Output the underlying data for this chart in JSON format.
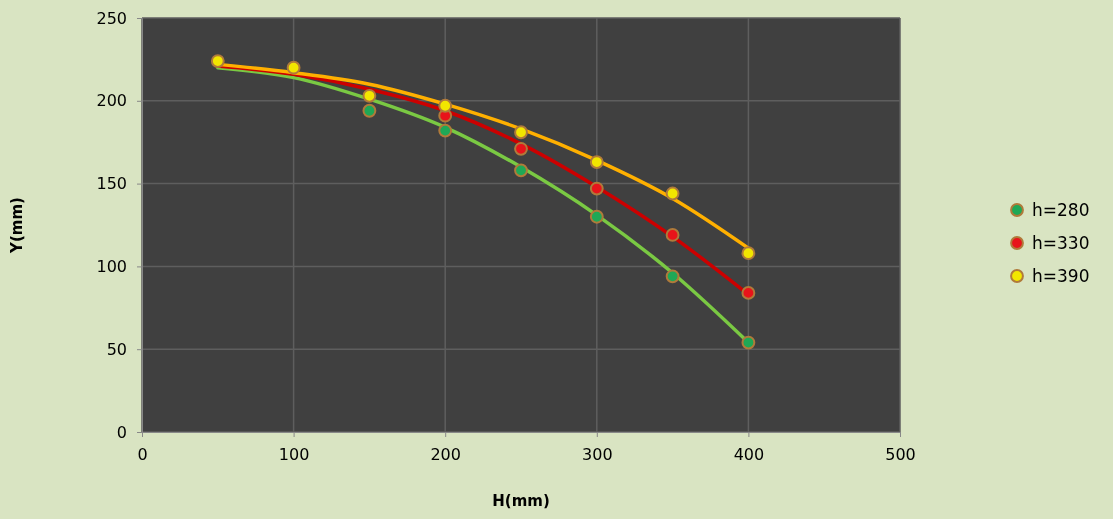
{
  "chart_data": {
    "type": "scatter",
    "xlabel": "H(mm)",
    "ylabel": "Y(mm)",
    "xlim": [
      0,
      500
    ],
    "xticks": [
      0,
      100,
      200,
      300,
      400,
      500
    ],
    "ylim": [
      0,
      250
    ],
    "yticks": [
      0,
      50,
      100,
      150,
      200,
      250
    ],
    "grid": true,
    "legend": "right",
    "marker": "circle",
    "series": [
      {
        "name": "h=280",
        "color": "#1fa856",
        "x": [
          150,
          200,
          250,
          300,
          350,
          400
        ],
        "values": [
          194,
          182,
          158,
          130,
          94,
          54
        ]
      },
      {
        "name": "h=330",
        "color": "#e8141a",
        "x": [
          200,
          250,
          300,
          350,
          400
        ],
        "values": [
          191,
          171,
          147,
          119,
          84
        ]
      },
      {
        "name": "h=390",
        "color": "#f2e600",
        "x": [
          50,
          100,
          150,
          200,
          250,
          300,
          350,
          400
        ],
        "values": [
          224,
          220,
          203,
          197,
          181,
          163,
          144,
          108
        ]
      },
      {
        "type": "line",
        "color": "#7ac943",
        "marker": "none",
        "x": [
          50,
          100,
          150,
          200,
          250,
          300,
          350,
          400
        ],
        "values": [
          220,
          214,
          201,
          184,
          160,
          131,
          96,
          54
        ]
      },
      {
        "type": "line",
        "color": "#cc0000",
        "marker": "none",
        "x": [
          50,
          100,
          150,
          200,
          250,
          300,
          350,
          400
        ],
        "values": [
          221,
          216,
          207,
          194,
          174,
          148,
          118,
          83
        ]
      },
      {
        "type": "line",
        "color": "#ffb000",
        "marker": "none",
        "x": [
          50,
          100,
          150,
          200,
          250,
          300,
          350,
          400
        ],
        "values": [
          222,
          217,
          210,
          198,
          183,
          164,
          141,
          111
        ]
      }
    ]
  }
}
